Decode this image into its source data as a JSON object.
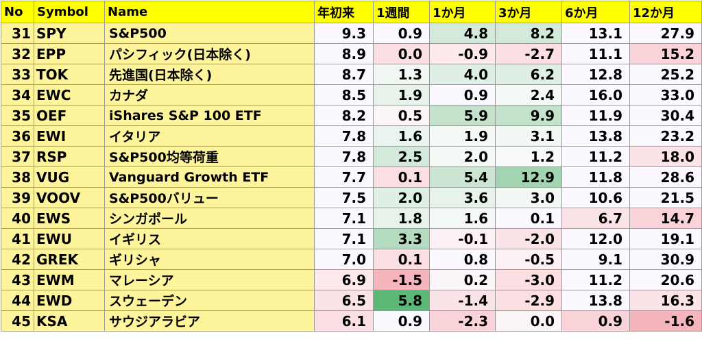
{
  "headers": [
    "No",
    "Symbol",
    "Name",
    "年初来",
    "1週間",
    "1か月",
    "3か月",
    "6か月",
    "12か月"
  ],
  "colors": {
    "header_bg": "#ffff00",
    "label_bg": "#fdf49c",
    "neutral": "#fbf9ff",
    "green_scale": [
      "#eef5f1",
      "#e0efe5",
      "#d3e9d9",
      "#c4e2cc",
      "#b4dbbf",
      "#a3d4b1",
      "#7cc48f",
      "#5cb877"
    ],
    "red_scale": [
      "#fde9ec",
      "#fbdfe3",
      "#f9d3d8",
      "#f7c4cb",
      "#f5b5bd"
    ]
  },
  "rows": [
    {
      "no": "31",
      "symbol": "SPY",
      "name": "S&P500",
      "ytd": "9.3",
      "w1": "0.9",
      "m1": "4.8",
      "m3": "8.2",
      "m6": "13.1",
      "m12": "27.9",
      "bg": {
        "ytd": "#fbf9ff",
        "w1": "#fbf9ff",
        "m1": "#d3e9d9",
        "m3": "#d3e9d9",
        "m6": "#fbf9ff",
        "m12": "#fbf9ff"
      }
    },
    {
      "no": "32",
      "symbol": "EPP",
      "name": "パシフィック(日本除く)",
      "ytd": "8.9",
      "w1": "0.0",
      "m1": "-0.9",
      "m3": "-2.7",
      "m6": "11.1",
      "m12": "15.2",
      "bg": {
        "ytd": "#fbf9ff",
        "w1": "#fbdfe3",
        "m1": "#fde9ec",
        "m3": "#fbdfe3",
        "m6": "#fbf9ff",
        "m12": "#f9d3d8"
      }
    },
    {
      "no": "33",
      "symbol": "TOK",
      "name": "先進国(日本除く)",
      "ytd": "8.7",
      "w1": "1.3",
      "m1": "4.0",
      "m3": "6.2",
      "m6": "12.8",
      "m12": "25.2",
      "bg": {
        "ytd": "#fbf9ff",
        "w1": "#f1f7f3",
        "m1": "#e0efe5",
        "m3": "#e0efe5",
        "m6": "#fbf9ff",
        "m12": "#fbf9ff"
      }
    },
    {
      "no": "34",
      "symbol": "EWC",
      "name": "カナダ",
      "ytd": "8.5",
      "w1": "1.9",
      "m1": "0.9",
      "m3": "2.4",
      "m6": "16.0",
      "m12": "33.0",
      "bg": {
        "ytd": "#fbf9ff",
        "w1": "#e6f2ea",
        "m1": "#fbf9ff",
        "m3": "#f5f9f6",
        "m6": "#fbf9ff",
        "m12": "#fbf9ff"
      }
    },
    {
      "no": "35",
      "symbol": "OEF",
      "name": "iShares S&P 100 ETF",
      "ytd": "8.2",
      "w1": "0.5",
      "m1": "5.9",
      "m3": "9.9",
      "m6": "11.9",
      "m12": "30.4",
      "bg": {
        "ytd": "#fbf9ff",
        "w1": "#fbf5f8",
        "m1": "#c4e2cc",
        "m3": "#c4e2cc",
        "m6": "#fbf9ff",
        "m12": "#fbf9ff"
      }
    },
    {
      "no": "36",
      "symbol": "EWI",
      "name": "イタリア",
      "ytd": "7.8",
      "w1": "1.6",
      "m1": "1.9",
      "m3": "3.1",
      "m6": "13.8",
      "m12": "23.2",
      "bg": {
        "ytd": "#fbf9ff",
        "w1": "#eaf4ee",
        "m1": "#f5f9f6",
        "m3": "#f1f7f3",
        "m6": "#fbf9ff",
        "m12": "#fbf9ff"
      }
    },
    {
      "no": "37",
      "symbol": "RSP",
      "name": "S&P500均等荷重",
      "ytd": "7.8",
      "w1": "2.5",
      "m1": "2.0",
      "m3": "1.2",
      "m6": "11.2",
      "m12": "18.0",
      "bg": {
        "ytd": "#fbf9ff",
        "w1": "#d3e9d9",
        "m1": "#f5f9f6",
        "m3": "#f8faf9",
        "m6": "#fbf9ff",
        "m12": "#fbe4e8"
      }
    },
    {
      "no": "38",
      "symbol": "VUG",
      "name": "Vanguard Growth ETF",
      "ytd": "7.7",
      "w1": "0.1",
      "m1": "5.4",
      "m3": "12.9",
      "m6": "11.8",
      "m12": "28.6",
      "bg": {
        "ytd": "#fbf9ff",
        "w1": "#fbdfe3",
        "m1": "#cde6d4",
        "m3": "#a3d4b1",
        "m6": "#fbf9ff",
        "m12": "#fbf9ff"
      }
    },
    {
      "no": "39",
      "symbol": "VOOV",
      "name": "S&P500バリュー",
      "ytd": "7.5",
      "w1": "2.0",
      "m1": "3.6",
      "m3": "3.0",
      "m6": "10.6",
      "m12": "21.5",
      "bg": {
        "ytd": "#fbf9ff",
        "w1": "#e0efe5",
        "m1": "#e6f2ea",
        "m3": "#f1f7f3",
        "m6": "#fbf9ff",
        "m12": "#fbf9ff"
      }
    },
    {
      "no": "40",
      "symbol": "EWS",
      "name": "シンガポール",
      "ytd": "7.1",
      "w1": "1.8",
      "m1": "1.6",
      "m3": "0.1",
      "m6": "6.7",
      "m12": "14.7",
      "bg": {
        "ytd": "#fbf9ff",
        "w1": "#e6f2ea",
        "m1": "#f5f9f6",
        "m3": "#fbf9ff",
        "m6": "#fbe4e8",
        "m12": "#f9d3d8"
      }
    },
    {
      "no": "41",
      "symbol": "EWU",
      "name": "イギリス",
      "ytd": "7.1",
      "w1": "3.3",
      "m1": "-0.1",
      "m3": "-2.0",
      "m6": "12.0",
      "m12": "19.1",
      "bg": {
        "ytd": "#fbf9ff",
        "w1": "#b4dbbf",
        "m1": "#fbf0f3",
        "m3": "#fbe4e8",
        "m6": "#fbf9ff",
        "m12": "#fbf9ff"
      }
    },
    {
      "no": "42",
      "symbol": "GREK",
      "name": "ギリシャ",
      "ytd": "7.0",
      "w1": "0.1",
      "m1": "0.8",
      "m3": "-0.5",
      "m6": "9.1",
      "m12": "30.9",
      "bg": {
        "ytd": "#fbf9ff",
        "w1": "#fbdfe3",
        "m1": "#fbf9ff",
        "m3": "#fbf0f3",
        "m6": "#fbf9ff",
        "m12": "#fbf9ff"
      }
    },
    {
      "no": "43",
      "symbol": "EWM",
      "name": "マレーシア",
      "ytd": "6.9",
      "w1": "-1.5",
      "m1": "0.2",
      "m3": "-3.0",
      "m6": "11.2",
      "m12": "20.6",
      "bg": {
        "ytd": "#fde9ec",
        "w1": "#f5b5bd",
        "m1": "#fbf5f8",
        "m3": "#fbdfe3",
        "m6": "#fbf9ff",
        "m12": "#fbf9ff"
      }
    },
    {
      "no": "44",
      "symbol": "EWD",
      "name": "スウェーデン",
      "ytd": "6.5",
      "w1": "5.8",
      "m1": "-1.4",
      "m3": "-2.9",
      "m6": "13.8",
      "m12": "16.3",
      "bg": {
        "ytd": "#fbe4e8",
        "w1": "#5cb877",
        "m1": "#fbe4e8",
        "m3": "#fbdfe3",
        "m6": "#fbf9ff",
        "m12": "#fbe4e8"
      }
    },
    {
      "no": "45",
      "symbol": "KSA",
      "name": "サウジアラビア",
      "ytd": "6.1",
      "w1": "0.9",
      "m1": "-2.3",
      "m3": "0.0",
      "m6": "0.9",
      "m12": "-1.6",
      "bg": {
        "ytd": "#fbdfe3",
        "w1": "#fbf9ff",
        "m1": "#f9d3d8",
        "m3": "#fbf5f8",
        "m6": "#f9d3d8",
        "m12": "#f5b5bd"
      }
    }
  ]
}
